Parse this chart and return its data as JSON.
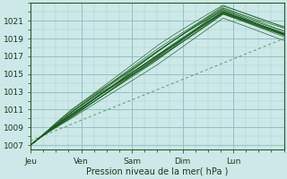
{
  "background_color": "#cce8e8",
  "plot_bg_color": "#cce8e8",
  "grid_color_major": "#88bbbb",
  "grid_color_minor": "#aacccc",
  "line_color_dark": "#1a5c1a",
  "line_color_dashed": "#4a8c4a",
  "xlabel": "Pression niveau de la mer( hPa )",
  "xlabels": [
    "Jeu",
    "Ven",
    "Sam",
    "Dim",
    "Lun"
  ],
  "ylim": [
    1006.5,
    1023.0
  ],
  "yticks": [
    1007,
    1009,
    1011,
    1013,
    1015,
    1017,
    1019,
    1021
  ],
  "n_days": 5,
  "figsize": [
    3.2,
    2.0
  ],
  "dpi": 100
}
